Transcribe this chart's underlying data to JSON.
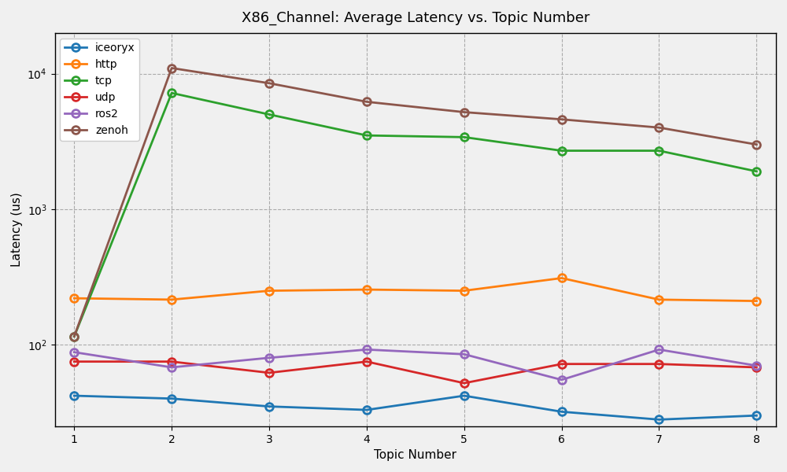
{
  "title": "X86_Channel: Average Latency vs. Topic Number",
  "xlabel": "Topic Number",
  "ylabel": "Latency (us)",
  "x": [
    1,
    2,
    3,
    4,
    5,
    6,
    7,
    8
  ],
  "series": {
    "iceoryx": {
      "color": "#1f77b4",
      "values": [
        42,
        40,
        35,
        33,
        42,
        32,
        28,
        30
      ]
    },
    "http": {
      "color": "#ff7f0e",
      "values": [
        220,
        215,
        250,
        255,
        250,
        310,
        215,
        210
      ]
    },
    "tcp": {
      "color": "#2ca02c",
      "values": [
        115,
        7200,
        5000,
        3500,
        3400,
        2700,
        2700,
        1900
      ]
    },
    "udp": {
      "color": "#d62728",
      "values": [
        75,
        75,
        62,
        75,
        52,
        72,
        72,
        68
      ]
    },
    "ros2": {
      "color": "#9467bd",
      "values": [
        88,
        68,
        80,
        92,
        85,
        55,
        92,
        70
      ]
    },
    "zenoh": {
      "color": "#8c564b",
      "values": [
        115,
        11000,
        8500,
        6200,
        5200,
        4600,
        4000,
        3000
      ]
    }
  },
  "figsize": [
    10,
    6
  ],
  "dpi": 100,
  "ylim": [
    25,
    20000
  ],
  "xlim": [
    0.8,
    8.2
  ],
  "background_color": "#f0f0f0"
}
